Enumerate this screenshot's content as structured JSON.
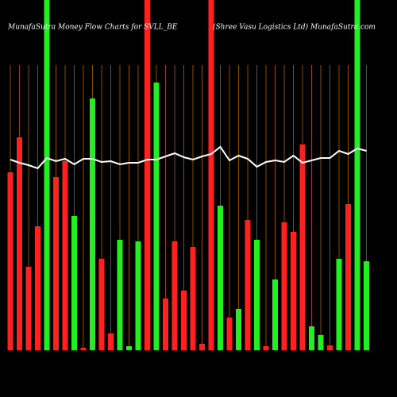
{
  "chart_data": {
    "type": "bar",
    "title": "MunafaSutra  Money Flow  Charts for SVLL_BE",
    "subtitle": "(Shree  Vasu  Logistics Ltd) MunafaSutra.com",
    "ylim": [
      0,
      441
    ],
    "grid": true,
    "grid_color": "#8b4a00",
    "line_color": "#ffffff",
    "values": [
      224,
      268,
      105,
      156,
      450,
      218,
      238,
      169,
      3,
      317,
      115,
      21,
      139,
      5,
      137,
      450,
      337,
      65,
      137,
      75,
      130,
      8,
      450,
      182,
      41,
      52,
      164,
      139,
      5,
      89,
      161,
      149,
      259,
      30,
      19,
      6,
      115,
      184,
      450,
      112
    ],
    "colors": [
      "#ff2020",
      "#ff2020",
      "#ff2020",
      "#ff2020",
      "#22ee22",
      "#ff2020",
      "#ff2020",
      "#22ee22",
      "#ff2020",
      "#22ee22",
      "#ff2020",
      "#ff2020",
      "#22ee22",
      "#22ee22",
      "#22ee22",
      "#ff2020",
      "#22ee22",
      "#ff2020",
      "#ff2020",
      "#ff2020",
      "#ff2020",
      "#ff2020",
      "#ff2020",
      "#22ee22",
      "#ff2020",
      "#22ee22",
      "#ff2020",
      "#22ee22",
      "#ff2020",
      "#22ee22",
      "#ff2020",
      "#ff2020",
      "#ff2020",
      "#22ee22",
      "#22ee22",
      "#ff2020",
      "#22ee22",
      "#ff2020",
      "#22ee22",
      "#22ee22"
    ],
    "line": [
      240,
      236,
      233,
      229,
      242,
      238,
      241,
      234,
      241,
      241,
      237,
      238,
      234,
      236,
      236,
      240,
      240,
      244,
      248,
      243,
      240,
      244,
      247,
      256,
      239,
      245,
      241,
      231,
      237,
      239,
      237,
      245,
      236,
      239,
      242,
      242,
      251,
      247,
      254,
      251
    ]
  }
}
